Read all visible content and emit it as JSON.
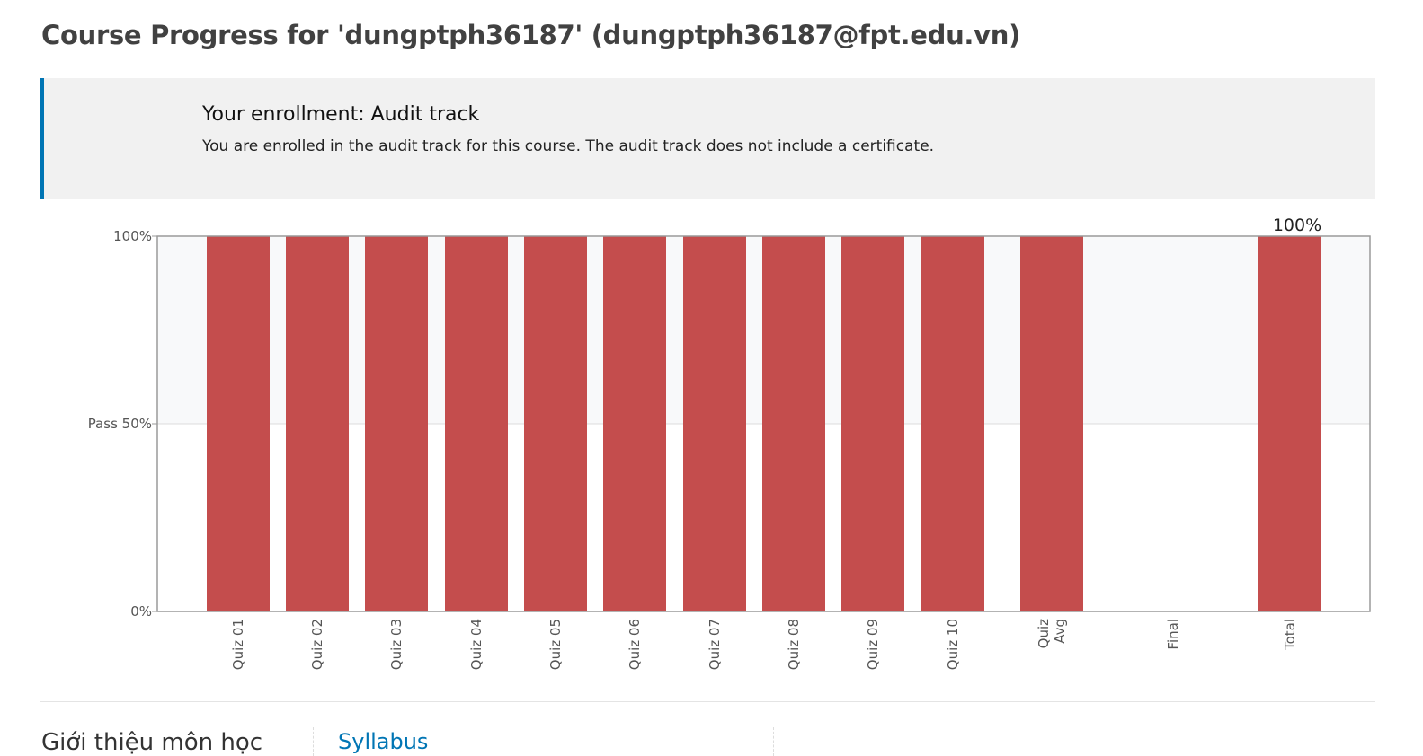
{
  "header": {
    "title": "Course Progress for 'dungptph36187' (dungptph36187@fpt.edu.vn)"
  },
  "enrollment": {
    "heading": "Your enrollment: Audit track",
    "message": "You are enrolled in the audit track for this course. The audit track does not include a certificate."
  },
  "chart_data": {
    "type": "bar",
    "categories": [
      "Quiz 01",
      "Quiz 02",
      "Quiz 03",
      "Quiz 04",
      "Quiz 05",
      "Quiz 06",
      "Quiz 07",
      "Quiz 08",
      "Quiz 09",
      "Quiz 10",
      "Quiz Avg",
      "Final",
      "Total"
    ],
    "values": [
      100,
      100,
      100,
      100,
      100,
      100,
      100,
      100,
      100,
      100,
      100,
      0,
      100
    ],
    "ytick_labels": [
      "100%",
      "Pass 50%",
      "0%"
    ],
    "yticks": [
      100,
      50,
      0
    ],
    "ylim": [
      0,
      100
    ],
    "pass_threshold": 50,
    "total_label": "100%",
    "title": "",
    "xlabel": "",
    "ylabel": "",
    "bar_color": "#c44d4d",
    "passing_band_color": "#f8f9fa"
  },
  "bottom": {
    "left_text": "Giới thiệu môn học",
    "link_text": "Syllabus"
  },
  "colors": {
    "accent": "#0075b4"
  }
}
